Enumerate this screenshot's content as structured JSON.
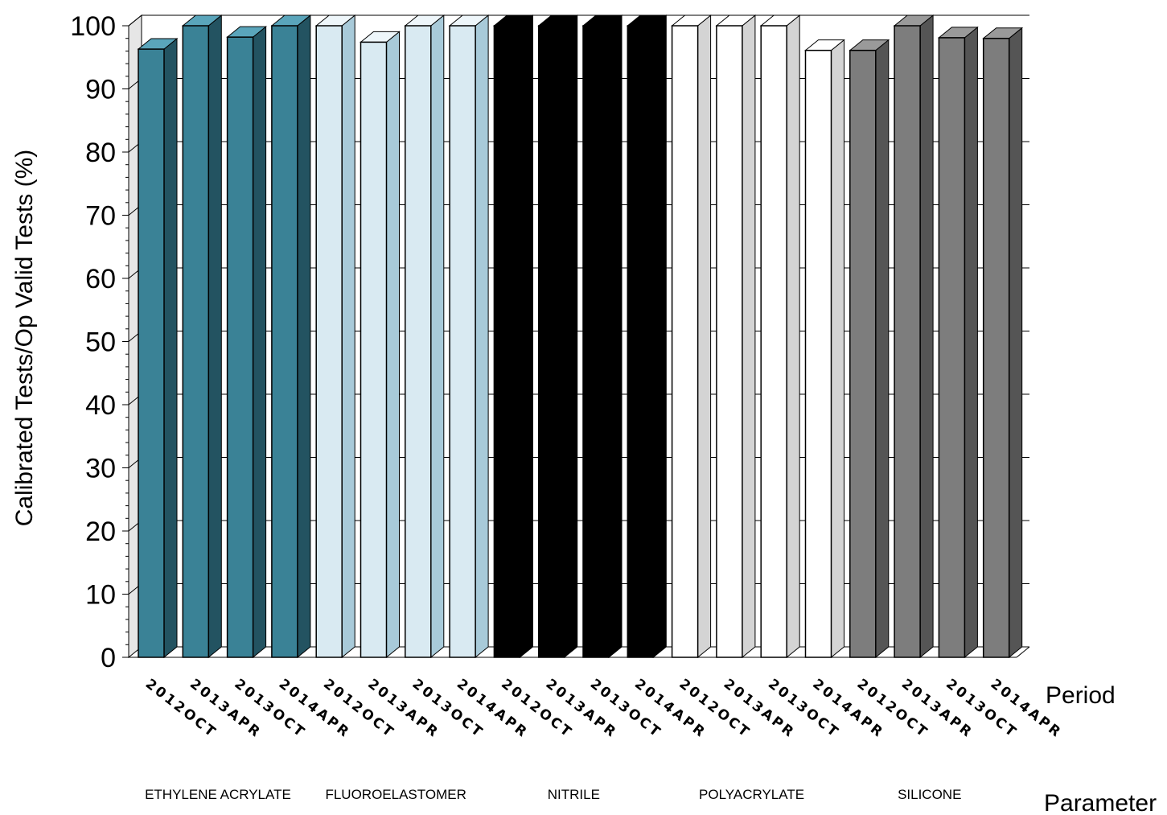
{
  "chart_data": {
    "type": "bar",
    "title": "",
    "ylabel": "Calibrated Tests/Op Valid Tests (%)",
    "xlabel_period": "Period",
    "xlabel_parameter": "Parameter",
    "ylim": [
      0,
      100
    ],
    "yticks": [
      0,
      10,
      20,
      30,
      40,
      50,
      60,
      70,
      80,
      90,
      100
    ],
    "grid": "horizontal",
    "style": "3d",
    "periods": [
      "2012OCT",
      "2013APR",
      "2013OCT",
      "2014APR"
    ],
    "groups": [
      {
        "name": "ETHYLENE ACRYLATE",
        "color": "#3a8296",
        "side": "#235361",
        "top": "#5aa5bb",
        "values": [
          96.3,
          100,
          98.2,
          100
        ]
      },
      {
        "name": "FLUOROELASTOMER",
        "color": "#d9eaf2",
        "side": "#a8cad9",
        "top": "#eef6fa",
        "values": [
          100,
          97.4,
          100,
          100
        ]
      },
      {
        "name": "NITRILE",
        "color": "#000000",
        "side": "#000000",
        "top": "#000000",
        "values": [
          100,
          100,
          100,
          100
        ]
      },
      {
        "name": "POLYACRYLATE",
        "color": "#ffffff",
        "side": "#d4d4d4",
        "top": "#ffffff",
        "values": [
          100,
          100,
          100,
          96.1
        ]
      },
      {
        "name": "SILICONE",
        "color": "#7d7d7d",
        "side": "#555555",
        "top": "#9a9a9a",
        "values": [
          96.1,
          100,
          98.1,
          98
        ]
      }
    ]
  }
}
